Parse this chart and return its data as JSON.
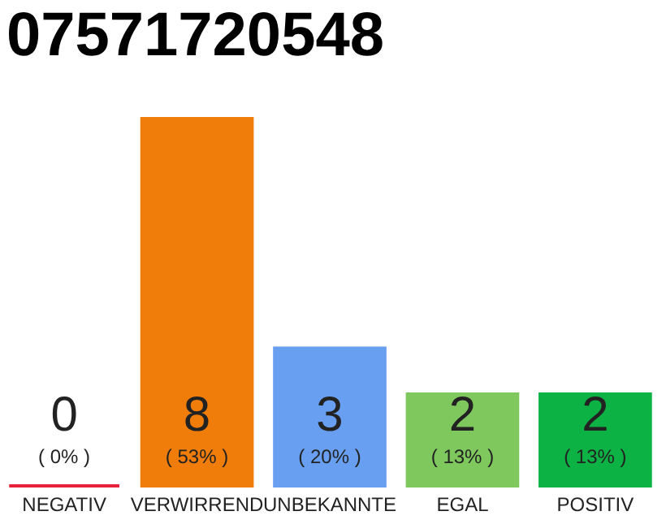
{
  "chart_data": {
    "type": "bar",
    "title": "07571720548",
    "categories": [
      "NEGATIV",
      "VERWIRREND",
      "UNBEKANNTE",
      "EGAL",
      "POSITIV"
    ],
    "values": [
      0,
      8,
      3,
      2,
      2
    ],
    "colors": [
      "#e8213a",
      "#f07d0a",
      "#689ff0",
      "#7ec85e",
      "#0cb344"
    ],
    "data_labels": true,
    "annotations": [
      "( 0% )",
      "( 53% )",
      "( 20% )",
      "( 13% )",
      "( 13% )"
    ],
    "ylim": [
      0,
      8
    ],
    "tick_labels": "x",
    "grid": false
  }
}
